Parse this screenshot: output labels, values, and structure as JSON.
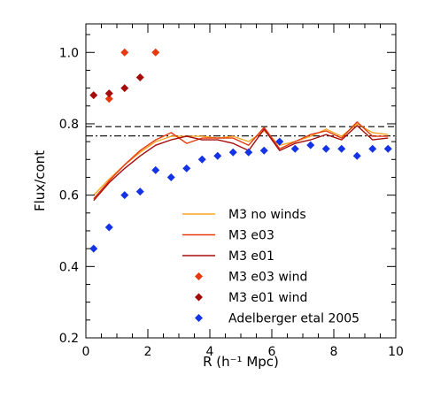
{
  "chart_data": {
    "type": "line",
    "xlabel": "R (h⁻¹ Mpc)",
    "ylabel": "Flux/cont",
    "xlim": [
      0,
      10
    ],
    "ylim": [
      0.2,
      1.08
    ],
    "xticks": [
      0,
      2,
      4,
      6,
      8,
      10
    ],
    "yticks": [
      0.2,
      0.4,
      0.6,
      0.8,
      1.0
    ],
    "xtick_labels": [
      "0",
      "2",
      "4",
      "6",
      "8",
      "10"
    ],
    "ytick_labels": [
      "0.2",
      "0.4",
      "0.6",
      "0.8",
      "1.0"
    ],
    "grid": false,
    "legend_position": "lower-right",
    "reference_lines": [
      {
        "style": "dashed",
        "y": 0.792
      },
      {
        "style": "dashdot",
        "y": 0.766
      }
    ],
    "series": [
      {
        "name": "M3 no winds",
        "kind": "line",
        "color": "#f5a623",
        "x": [
          0.25,
          0.75,
          1.25,
          1.75,
          2.25,
          2.75,
          3.25,
          3.75,
          4.25,
          4.75,
          5.25,
          5.75,
          6.25,
          6.75,
          7.25,
          7.75,
          8.25,
          8.75,
          9.25,
          9.75
        ],
        "y": [
          0.6,
          0.645,
          0.685,
          0.72,
          0.75,
          0.765,
          0.765,
          0.765,
          0.76,
          0.765,
          0.75,
          0.78,
          0.74,
          0.75,
          0.765,
          0.785,
          0.765,
          0.8,
          0.775,
          0.77
        ]
      },
      {
        "name": "M3 e03",
        "kind": "line",
        "color": "#e8380d",
        "x": [
          0.25,
          0.75,
          1.25,
          1.75,
          2.25,
          2.75,
          3.25,
          3.75,
          4.25,
          4.75,
          5.25,
          5.75,
          6.25,
          6.75,
          7.25,
          7.75,
          8.25,
          8.75,
          9.25,
          9.75
        ],
        "y": [
          0.59,
          0.64,
          0.685,
          0.725,
          0.755,
          0.775,
          0.745,
          0.76,
          0.76,
          0.76,
          0.74,
          0.79,
          0.73,
          0.75,
          0.77,
          0.78,
          0.76,
          0.805,
          0.765,
          0.765
        ]
      },
      {
        "name": "M3 e01",
        "kind": "line",
        "color": "#a50b0b",
        "x": [
          0.25,
          0.75,
          1.25,
          1.75,
          2.25,
          2.75,
          3.25,
          3.75,
          4.25,
          4.75,
          5.25,
          5.75,
          6.25,
          6.75,
          7.25,
          7.75,
          8.25,
          8.75,
          9.25,
          9.75
        ],
        "y": [
          0.585,
          0.635,
          0.675,
          0.71,
          0.74,
          0.755,
          0.765,
          0.755,
          0.755,
          0.745,
          0.725,
          0.785,
          0.725,
          0.745,
          0.755,
          0.77,
          0.755,
          0.795,
          0.755,
          0.76
        ]
      },
      {
        "name": "M3 e03 wind",
        "kind": "scatter",
        "color": "#e8380d",
        "x": [
          0.75,
          1.25,
          2.25
        ],
        "y": [
          0.87,
          1.0,
          1.0
        ]
      },
      {
        "name": "M3 e01 wind",
        "kind": "scatter",
        "color": "#a50b0b",
        "x": [
          0.25,
          0.75,
          1.25,
          1.75
        ],
        "y": [
          0.88,
          0.885,
          0.9,
          0.93
        ]
      },
      {
        "name": "Adelberger etal 2005",
        "kind": "scatter",
        "color": "#1433e6",
        "x": [
          0.25,
          0.75,
          1.25,
          1.75,
          2.25,
          2.75,
          3.25,
          3.75,
          4.25,
          4.75,
          5.25,
          5.75,
          6.25,
          6.75,
          7.25,
          7.75,
          8.25,
          8.75,
          9.25,
          9.75
        ],
        "y": [
          0.45,
          0.51,
          0.6,
          0.61,
          0.67,
          0.65,
          0.675,
          0.7,
          0.71,
          0.72,
          0.72,
          0.725,
          0.75,
          0.73,
          0.74,
          0.73,
          0.73,
          0.71,
          0.73,
          0.73
        ]
      }
    ]
  }
}
